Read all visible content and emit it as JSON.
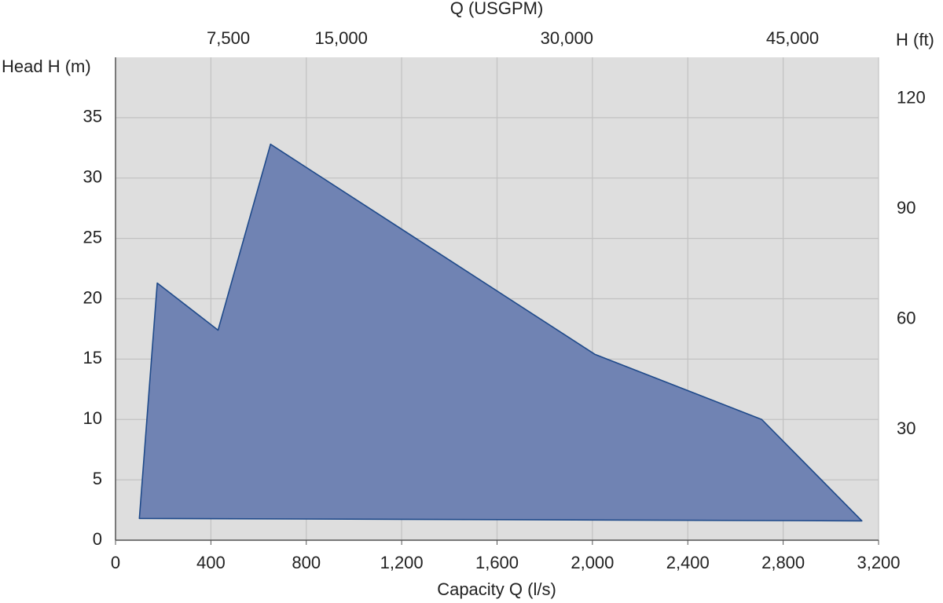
{
  "chart_data": {
    "type": "polygon",
    "x_label": "Capacity Q (l/s)",
    "y_label": "Head H (m)",
    "x2_label": "Q (USGPM)",
    "y2_label": "H (ft)",
    "x": [
      100,
      175,
      430,
      650,
      2010,
      2710,
      3130
    ],
    "values": [
      1.8,
      21.3,
      17.4,
      32.8,
      15.4,
      10,
      1.6
    ],
    "color": "#7083b3",
    "edge_color": "#1f4a8a",
    "xlim": [
      0,
      3200
    ],
    "xticks": [
      0,
      400,
      800,
      {
        "value": 1200,
        "label": "1,200"
      },
      {
        "value": 1600,
        "label": "1,600"
      },
      {
        "value": 2000,
        "label": "2,000"
      },
      {
        "value": 2400,
        "label": "2,400"
      },
      {
        "value": 2800,
        "label": "2,800"
      },
      {
        "value": 3200,
        "label": "3,200"
      }
    ],
    "ylim": [
      0,
      40
    ],
    "yticks": [
      0,
      5,
      10,
      15,
      20,
      25,
      30,
      35
    ],
    "x2lim": [
      0,
      50720
    ],
    "x2ticks": [
      {
        "value": 7500,
        "label": "7,500"
      },
      {
        "value": 15000,
        "label": "15,000"
      },
      {
        "value": 30000,
        "label": "30,000"
      },
      {
        "value": 45000,
        "label": "45,000"
      }
    ],
    "y2lim": [
      0,
      131.2
    ],
    "y2ticks": [
      30,
      60,
      90,
      120
    ],
    "grid": true
  }
}
